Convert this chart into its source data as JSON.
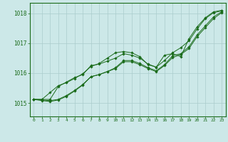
{
  "bg_color": "#cce8e8",
  "grid_color": "#aacccc",
  "line_color": "#1a6b1a",
  "xlabel_bg": "#1a6b1a",
  "xlabel_fg": "#cce8e8",
  "xlim": [
    -0.5,
    23.5
  ],
  "ylim": [
    1014.55,
    1018.35
  ],
  "yticks": [
    1015,
    1016,
    1017,
    1018
  ],
  "xticks": [
    0,
    1,
    2,
    3,
    4,
    5,
    6,
    7,
    8,
    9,
    10,
    11,
    12,
    13,
    14,
    15,
    16,
    17,
    18,
    19,
    20,
    21,
    22,
    23
  ],
  "series": [
    [
      1015.12,
      1015.12,
      1015.12,
      1015.55,
      1015.7,
      1015.85,
      1015.95,
      1016.25,
      1016.3,
      1016.4,
      1016.5,
      1016.65,
      1016.6,
      1016.5,
      1016.3,
      1016.2,
      1016.6,
      1016.65,
      1016.55,
      1017.15,
      1017.55,
      1017.85,
      1018.05,
      1018.1
    ],
    [
      1015.12,
      1015.1,
      1015.08,
      1015.12,
      1015.25,
      1015.42,
      1015.62,
      1015.88,
      1015.95,
      1016.05,
      1016.18,
      1016.42,
      1016.42,
      1016.32,
      1016.18,
      1016.08,
      1016.28,
      1016.58,
      1016.65,
      1016.88,
      1017.28,
      1017.58,
      1017.88,
      1018.05
    ],
    [
      1015.12,
      1015.08,
      1015.05,
      1015.1,
      1015.22,
      1015.4,
      1015.6,
      1015.88,
      1015.95,
      1016.05,
      1016.15,
      1016.38,
      1016.38,
      1016.28,
      1016.15,
      1016.05,
      1016.25,
      1016.52,
      1016.62,
      1016.82,
      1017.22,
      1017.52,
      1017.82,
      1018.02
    ],
    [
      1015.12,
      1015.12,
      1015.35,
      1015.58,
      1015.68,
      1015.82,
      1015.98,
      1016.22,
      1016.32,
      1016.5,
      1016.68,
      1016.72,
      1016.68,
      1016.55,
      1016.28,
      1016.2,
      1016.42,
      1016.68,
      1016.85,
      1017.08,
      1017.48,
      1017.82,
      1018.02,
      1018.08
    ]
  ]
}
